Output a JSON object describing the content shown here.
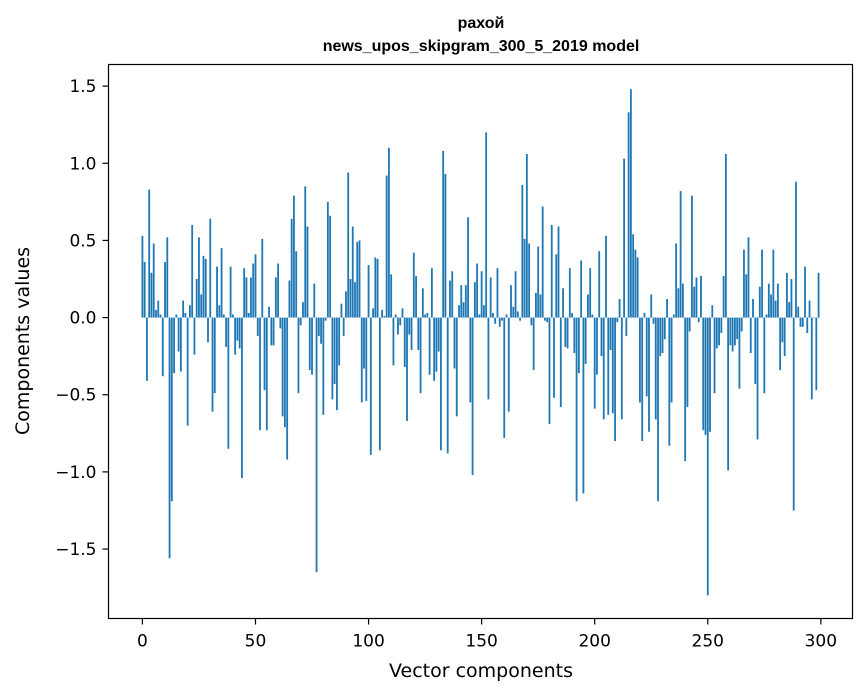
{
  "chart_data": {
    "type": "bar",
    "title": "рахой",
    "subtitle": "news_upos_skipgram_300_5_2019 model",
    "xlabel": "Vector components",
    "ylabel": "Components values",
    "xlim": [
      -15,
      314
    ],
    "ylim": [
      -1.95,
      1.64
    ],
    "xticks": [
      0,
      50,
      100,
      150,
      200,
      250,
      300
    ],
    "yticks": [
      -1.5,
      -1.0,
      -0.5,
      0.0,
      0.5,
      1.0,
      1.5
    ],
    "ytick_labels": [
      "−1.5",
      "−1.0",
      "−0.5",
      "0.0",
      "0.5",
      "1.0",
      "1.5"
    ],
    "grid": false,
    "bar_color": "#1f77b4",
    "values": [
      0.53,
      0.36,
      -0.41,
      0.83,
      0.29,
      0.48,
      0.05,
      0.11,
      0.02,
      -0.38,
      0.36,
      0.52,
      -1.56,
      -1.19,
      -0.36,
      0.02,
      -0.22,
      -0.35,
      0.11,
      0.03,
      -0.7,
      0.08,
      0.6,
      -0.24,
      0.25,
      0.52,
      0.15,
      0.4,
      0.38,
      -0.16,
      0.64,
      -0.61,
      -0.49,
      0.33,
      0.08,
      0.45,
      0.02,
      -0.19,
      -0.85,
      0.33,
      0.02,
      -0.24,
      -0.15,
      -0.2,
      -1.04,
      0.32,
      0.26,
      0.03,
      0.26,
      0.35,
      0.41,
      -0.12,
      -0.73,
      0.51,
      -0.47,
      -0.73,
      0.07,
      -0.18,
      -0.18,
      0.26,
      0.35,
      -0.07,
      -0.64,
      -0.71,
      -0.92,
      0.24,
      0.64,
      0.79,
      0.43,
      -0.49,
      -0.05,
      0.1,
      0.85,
      0.59,
      -0.34,
      -0.37,
      0.22,
      -1.65,
      -0.12,
      -0.17,
      -0.63,
      -0.02,
      0.75,
      0.66,
      -0.53,
      -0.43,
      -0.6,
      -0.31,
      0.09,
      -0.12,
      0.17,
      0.94,
      0.25,
      0.59,
      0.23,
      0.49,
      0.5,
      -0.55,
      -0.33,
      -0.54,
      0.34,
      -0.89,
      0.06,
      0.39,
      0.38,
      -0.86,
      0.05,
      0.01,
      0.92,
      1.1,
      0.28,
      -0.31,
      0.02,
      -0.11,
      -0.05,
      0.06,
      -0.32,
      -0.67,
      -0.11,
      -0.21,
      0.42,
      0.27,
      -0.21,
      -0.49,
      0.19,
      0.02,
      0.03,
      -0.37,
      0.32,
      -0.41,
      -0.35,
      -0.22,
      -0.86,
      1.08,
      0.93,
      -0.88,
      0.24,
      0.3,
      -0.33,
      -0.64,
      0.08,
      0.21,
      0.1,
      0.21,
      0.65,
      -0.55,
      -1.02,
      0.23,
      0.35,
      0.02,
      0.3,
      0.08,
      1.2,
      -0.53,
      0.26,
      0.03,
      -0.04,
      0.32,
      -0.06,
      -0.02,
      -0.78,
      0.02,
      -0.61,
      0.21,
      0.07,
      0.3,
      0.04,
      -0.02,
      0.86,
      0.51,
      1.06,
      0.48,
      -0.05,
      -0.34,
      0.16,
      0.46,
      0.15,
      0.72,
      -0.02,
      -0.03,
      -0.69,
      0.6,
      -0.52,
      0.41,
      0.59,
      -0.58,
      0.19,
      -0.19,
      -0.2,
      0.32,
      0.03,
      -0.23,
      -1.19,
      -0.36,
      0.37,
      -1.14,
      -0.3,
      0.15,
      0.32,
      0.02,
      -0.59,
      -0.37,
      0.43,
      -0.25,
      -0.66,
      0.53,
      -0.63,
      -0.21,
      -0.62,
      -0.8,
      -0.03,
      0.12,
      -0.66,
      1.03,
      -0.12,
      1.33,
      1.48,
      0.54,
      0.44,
      0.39,
      -0.55,
      -0.8,
      0.03,
      -0.51,
      -0.74,
      0.15,
      -0.04,
      -0.66,
      -1.19,
      -0.25,
      -0.23,
      -0.14,
      0.12,
      -0.83,
      -0.55,
      0.02,
      0.48,
      0.19,
      0.82,
      0.22,
      -0.93,
      -0.58,
      -0.09,
      0.79,
      0.2,
      0.26,
      -0.03,
      0.27,
      -0.73,
      -0.76,
      -1.8,
      -0.74,
      0.08,
      -0.49,
      -0.2,
      -0.18,
      -0.1,
      0.27,
      1.06,
      -0.99,
      -0.18,
      -0.22,
      -0.18,
      -0.14,
      -0.46,
      -0.09,
      0.44,
      0.28,
      0.52,
      -0.23,
      0.12,
      -0.43,
      -0.79,
      0.2,
      0.44,
      -0.49,
      0.02,
      0.22,
      0.15,
      0.44,
      0.11,
      0.22,
      -0.34,
      -0.16,
      -0.25,
      0.29,
      0.1,
      0.25,
      -1.25,
      0.88,
      0.07,
      -0.06,
      -0.06,
      0.33,
      -0.1,
      0.11,
      -0.53,
      0.0,
      -0.47,
      0.29
    ]
  }
}
